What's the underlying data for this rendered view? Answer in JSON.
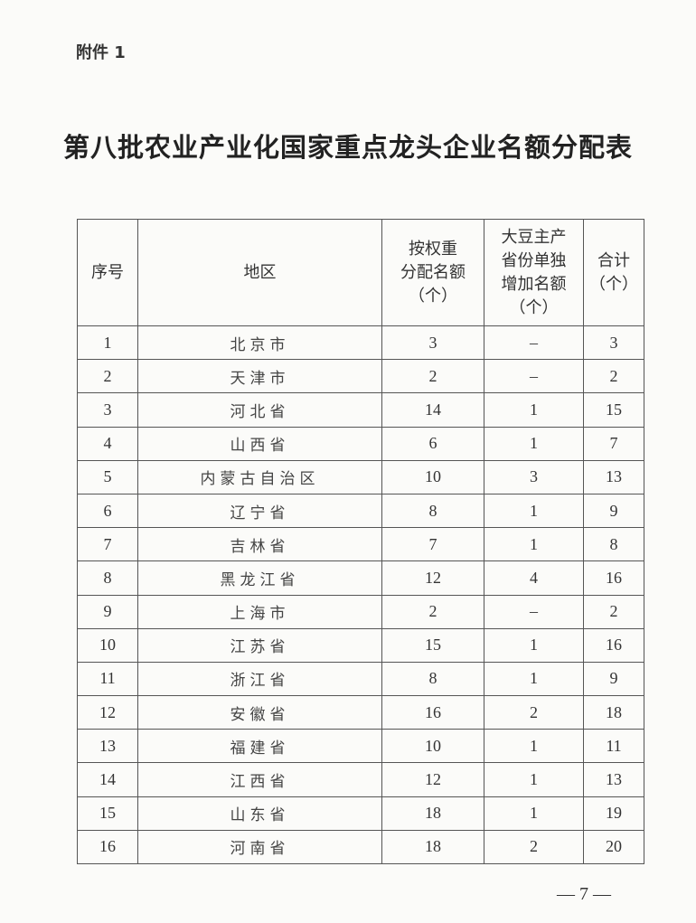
{
  "attachment_label": "附件 1",
  "title": "第八批农业产业化国家重点龙头企业名额分配表",
  "table": {
    "headers": [
      "序号",
      "地区",
      "按权重\n分配名额\n（个）",
      "大豆主产\n省份单独\n增加名额\n（个）",
      "合计\n（个）"
    ],
    "rows": [
      [
        "1",
        "北京市",
        "3",
        "–",
        "3"
      ],
      [
        "2",
        "天津市",
        "2",
        "–",
        "2"
      ],
      [
        "3",
        "河北省",
        "14",
        "1",
        "15"
      ],
      [
        "4",
        "山西省",
        "6",
        "1",
        "7"
      ],
      [
        "5",
        "内蒙古自治区",
        "10",
        "3",
        "13"
      ],
      [
        "6",
        "辽宁省",
        "8",
        "1",
        "9"
      ],
      [
        "7",
        "吉林省",
        "7",
        "1",
        "8"
      ],
      [
        "8",
        "黑龙江省",
        "12",
        "4",
        "16"
      ],
      [
        "9",
        "上海市",
        "2",
        "–",
        "2"
      ],
      [
        "10",
        "江苏省",
        "15",
        "1",
        "16"
      ],
      [
        "11",
        "浙江省",
        "8",
        "1",
        "9"
      ],
      [
        "12",
        "安徽省",
        "16",
        "2",
        "18"
      ],
      [
        "13",
        "福建省",
        "10",
        "1",
        "11"
      ],
      [
        "14",
        "江西省",
        "12",
        "1",
        "13"
      ],
      [
        "15",
        "山东省",
        "18",
        "1",
        "19"
      ],
      [
        "16",
        "河南省",
        "18",
        "2",
        "20"
      ]
    ]
  },
  "page_number": "— 7 —"
}
